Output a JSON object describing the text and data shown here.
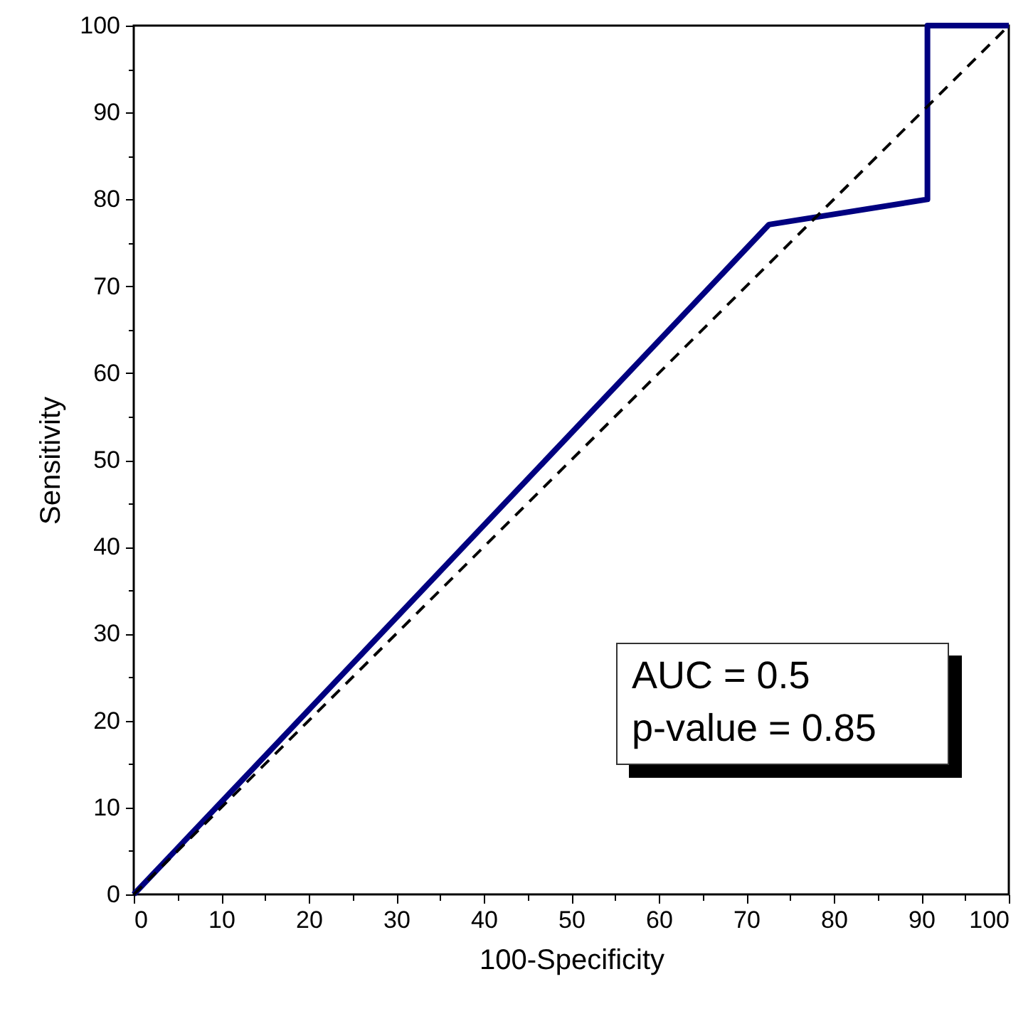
{
  "chart_data": {
    "type": "line",
    "xlabel": "100-Specificity",
    "ylabel": "Sensitivity",
    "xlim": [
      0,
      100
    ],
    "ylim": [
      0,
      100
    ],
    "xticks": [
      0,
      {
        "value": 5,
        "label": null
      },
      10,
      {
        "value": 15,
        "label": null
      },
      20,
      {
        "value": 25,
        "label": null
      },
      30,
      {
        "value": 35,
        "label": null
      },
      40,
      {
        "value": 45,
        "label": null
      },
      50,
      {
        "value": 55,
        "label": null
      },
      60,
      {
        "value": 65,
        "label": null
      },
      70,
      {
        "value": 75,
        "label": null
      },
      80,
      {
        "value": 85,
        "label": null
      },
      90,
      {
        "value": 95,
        "label": null
      },
      100
    ],
    "yticks": [
      0,
      {
        "value": 5,
        "label": null
      },
      10,
      {
        "value": 15,
        "label": null
      },
      20,
      {
        "value": 25,
        "label": null
      },
      30,
      {
        "value": 35,
        "label": null
      },
      40,
      {
        "value": 45,
        "label": null
      },
      50,
      {
        "value": 55,
        "label": null
      },
      60,
      {
        "value": 65,
        "label": null
      },
      70,
      {
        "value": 75,
        "label": null
      },
      80,
      {
        "value": 85,
        "label": null
      },
      90,
      {
        "value": 95,
        "label": null
      },
      100
    ],
    "grid": false,
    "marker": "none",
    "series": [
      {
        "color": "#000080",
        "line_style": "solid",
        "x": [
          0,
          72.6,
          90.7,
          90.7,
          100
        ],
        "values": [
          0,
          77.1,
          80,
          100,
          100
        ]
      },
      {
        "color": "#000000",
        "line_style": "dashed",
        "x": [
          0,
          100
        ],
        "values": [
          0,
          100
        ]
      }
    ],
    "annotations": [
      "AUC = 0.5",
      "p-value = 0.85"
    ]
  }
}
